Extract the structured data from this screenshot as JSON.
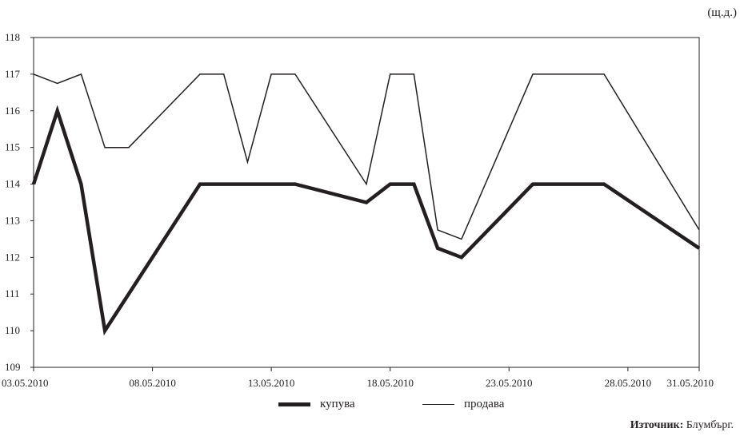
{
  "unit_label": "(щ.д.)",
  "source": {
    "prefix": "Източник:",
    "text": "Блумбърг."
  },
  "chart_data": {
    "type": "line",
    "x": [
      "03.05.2010",
      "04.05.2010",
      "05.05.2010",
      "06.05.2010",
      "07.05.2010",
      "10.05.2010",
      "11.05.2010",
      "12.05.2010",
      "13.05.2010",
      "14.05.2010",
      "17.05.2010",
      "18.05.2010",
      "19.05.2010",
      "20.05.2010",
      "21.05.2010",
      "24.05.2010",
      "25.05.2010",
      "26.05.2010",
      "27.05.2010",
      "28.05.2010",
      "31.05.2010"
    ],
    "x_tick_labels": [
      "03.05.2010",
      "08.05.2010",
      "13.05.2010",
      "18.05.2010",
      "23.05.2010",
      "28.05.2010",
      "31.05.2010"
    ],
    "ylim": [
      109,
      118
    ],
    "y_ticks": [
      109,
      110,
      111,
      112,
      113,
      114,
      115,
      116,
      117,
      118
    ],
    "series": [
      {
        "name": "купува",
        "color": "#231f20",
        "style": "thick",
        "values": [
          114,
          116,
          114,
          110,
          null,
          114,
          114,
          null,
          114,
          114,
          113.5,
          114,
          114,
          112.25,
          112,
          114,
          114,
          114,
          114,
          null,
          112.25
        ]
      },
      {
        "name": "продава",
        "color": "#231f20",
        "style": "thin",
        "values": [
          117,
          116.75,
          117,
          115,
          115,
          117,
          117,
          114.6,
          117,
          117,
          114,
          117,
          117,
          112.75,
          112.5,
          117,
          117,
          117,
          117,
          null,
          112.75
        ]
      }
    ],
    "legend_position": "bottom-center",
    "grid": false
  }
}
